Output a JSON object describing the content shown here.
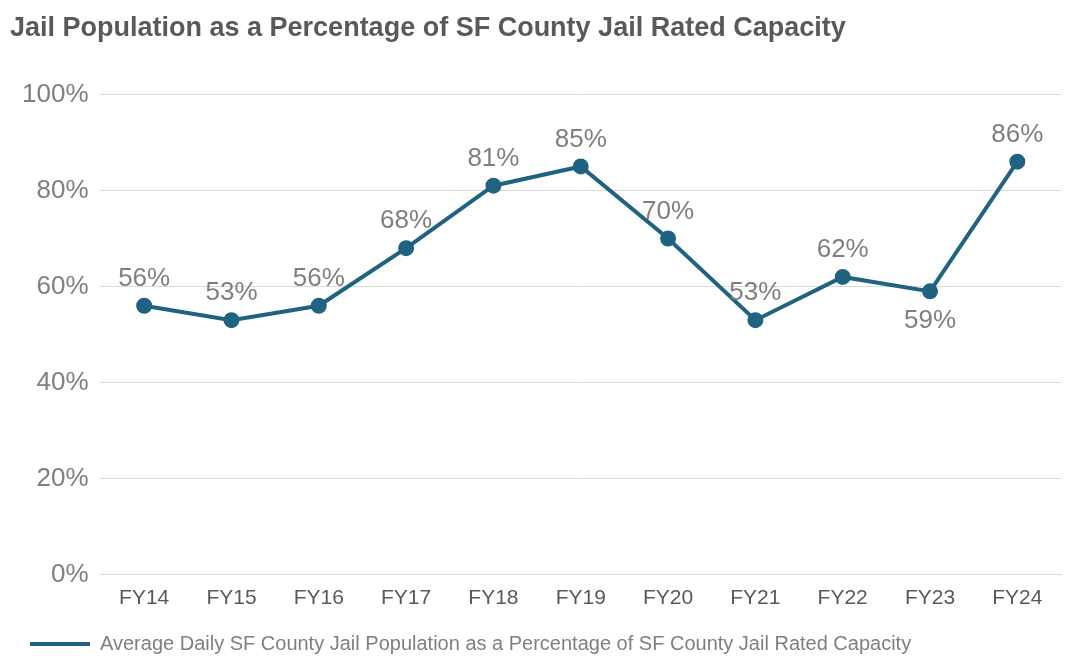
{
  "chart_data": {
    "type": "line",
    "title": "Jail Population as a Percentage of SF County Jail Rated Capacity",
    "categories": [
      "FY14",
      "FY15",
      "FY16",
      "FY17",
      "FY18",
      "FY19",
      "FY20",
      "FY21",
      "FY22",
      "FY23",
      "FY24"
    ],
    "series": [
      {
        "name": "Average Daily SF County Jail Population as a Percentage of SF County Jail Rated Capacity",
        "color": "#1f6381",
        "marker": "circle",
        "values": [
          56,
          53,
          56,
          68,
          81,
          85,
          70,
          53,
          62,
          59,
          86
        ],
        "value_labels": [
          "56%",
          "53%",
          "56%",
          "68%",
          "81%",
          "85%",
          "70%",
          "53%",
          "62%",
          "59%",
          "86%"
        ]
      }
    ],
    "ylim": [
      0,
      100
    ],
    "yticks": [
      {
        "value": 0,
        "label": "0%"
      },
      {
        "value": 20,
        "label": "20%"
      },
      {
        "value": 40,
        "label": "40%"
      },
      {
        "value": 60,
        "label": "60%"
      },
      {
        "value": 80,
        "label": "80%"
      },
      {
        "value": 100,
        "label": "100%"
      }
    ],
    "grid": true,
    "legend": "bottom",
    "data_labels": true
  }
}
